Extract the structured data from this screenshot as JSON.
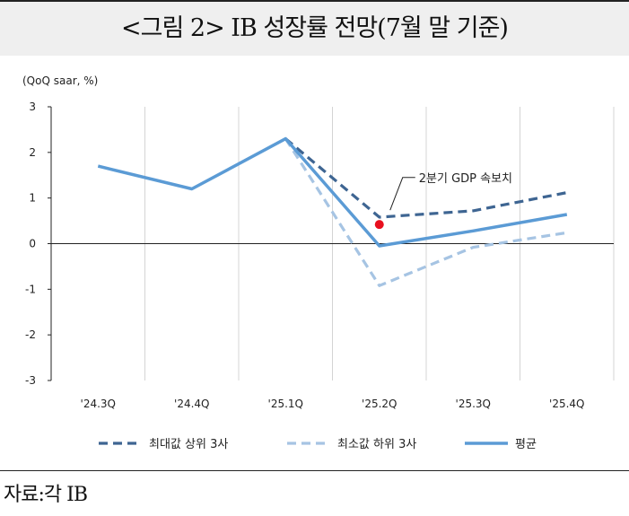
{
  "title": "<그림 2> IB 성장률 전망(7월 말 기준)",
  "source": "자료:각 IB",
  "chart_data": {
    "type": "line",
    "unit_label": "(QoQ saar, %)",
    "categories": [
      "'24.3Q",
      "'24.4Q",
      "'25.1Q",
      "'25.2Q",
      "'25.3Q",
      "'25.4Q"
    ],
    "ylim": [
      -3,
      3
    ],
    "yticks": [
      3,
      2,
      1,
      0,
      -1,
      -2,
      -3
    ],
    "grid": "vertical",
    "series": [
      {
        "name": "최대값 상위 3사",
        "style": "dashed",
        "color": "#3e6592",
        "values": [
          null,
          null,
          2.3,
          0.58,
          0.72,
          1.12
        ]
      },
      {
        "name": "최소값 하위 3사",
        "style": "dashed",
        "color": "#a6c4e3",
        "values": [
          null,
          null,
          2.3,
          -0.92,
          -0.08,
          0.24
        ]
      },
      {
        "name": "평균",
        "style": "solid",
        "color": "#5b9bd5",
        "values": [
          1.7,
          1.2,
          2.3,
          -0.05,
          0.28,
          0.64
        ]
      }
    ],
    "marker": {
      "label": "2분기 GDP 속보치",
      "category": "'25.2Q",
      "value": 0.42,
      "color": "#e8101e"
    },
    "legend_position": "bottom"
  }
}
